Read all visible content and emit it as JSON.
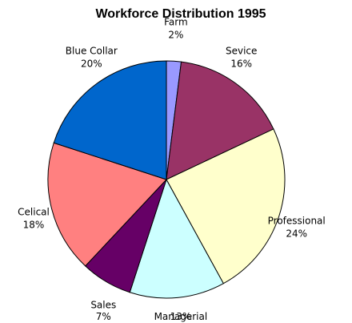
{
  "chart_data": {
    "type": "pie",
    "title": "Workforce Distribution 1995",
    "start_angle_deg": 0,
    "direction": "clockwise",
    "legend": "none",
    "slices": [
      {
        "label": "Farm",
        "value": 2,
        "value_label": "2%",
        "color": "#9999ff"
      },
      {
        "label": "Sevice",
        "value": 16,
        "value_label": "16%",
        "color": "#993366"
      },
      {
        "label": "Professional",
        "value": 24,
        "value_label": "24%",
        "color": "#ffffcc"
      },
      {
        "label": "Managerial",
        "value": 13,
        "value_label": "13%",
        "color": "#ccffff"
      },
      {
        "label": "Sales",
        "value": 7,
        "value_label": "7%",
        "color": "#660066"
      },
      {
        "label": "Celical",
        "value": 18,
        "value_label": "18%",
        "color": "#ff8080"
      },
      {
        "label": "Blue Collar",
        "value": 20,
        "value_label": "20%",
        "color": "#0066cc"
      }
    ]
  }
}
